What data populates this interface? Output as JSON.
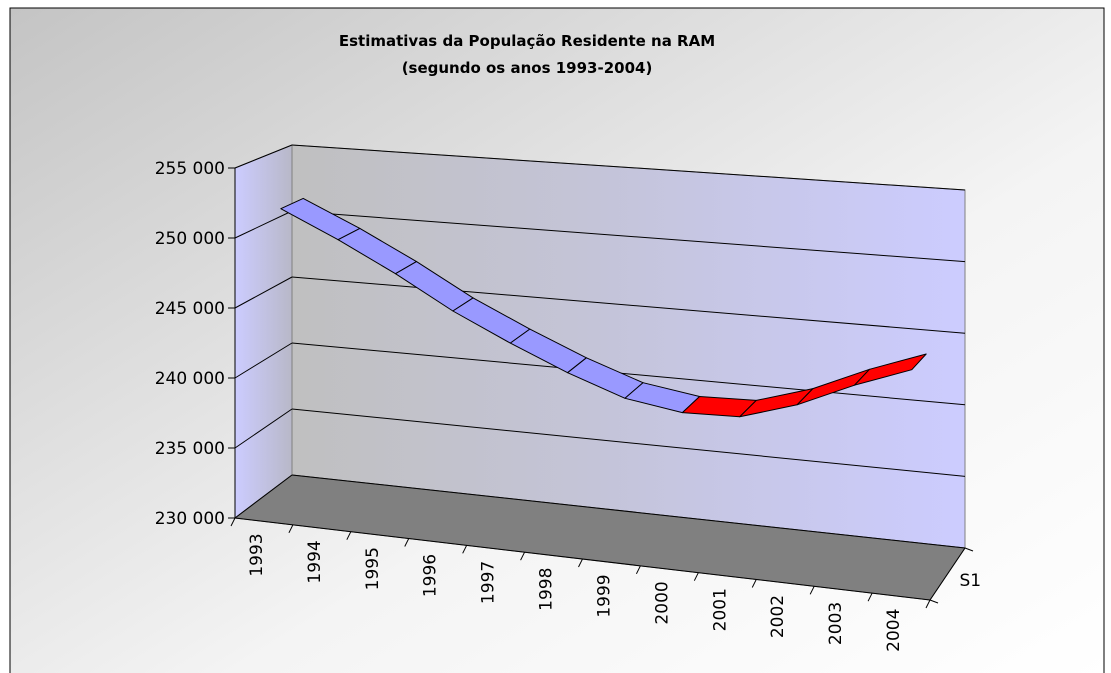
{
  "chart_data": {
    "type": "line3d",
    "title": "Estimativas da População Residente na RAM",
    "subtitle": "(segundo os anos 1993-2004)",
    "categories": [
      "1993",
      "1994",
      "1995",
      "1996",
      "1997",
      "1998",
      "1999",
      "2000",
      "2001",
      "2002",
      "2003",
      "2004"
    ],
    "series": [
      {
        "name": "S1",
        "color": "#9999ff",
        "increase_color": "#ff0000",
        "values": [
          251700,
          249800,
          247700,
          245400,
          243500,
          241800,
          240400,
          239800,
          239900,
          241100,
          242800,
          244200
        ]
      }
    ],
    "ylim": [
      230000,
      255000
    ],
    "yticks": [
      {
        "value": 230000,
        "label": "230 000"
      },
      {
        "value": 235000,
        "label": "235 000"
      },
      {
        "value": 240000,
        "label": "240 000"
      },
      {
        "value": 245000,
        "label": "245 000"
      },
      {
        "value": 250000,
        "label": "250 000"
      },
      {
        "value": 255000,
        "label": "255 000"
      }
    ],
    "grid": true
  }
}
